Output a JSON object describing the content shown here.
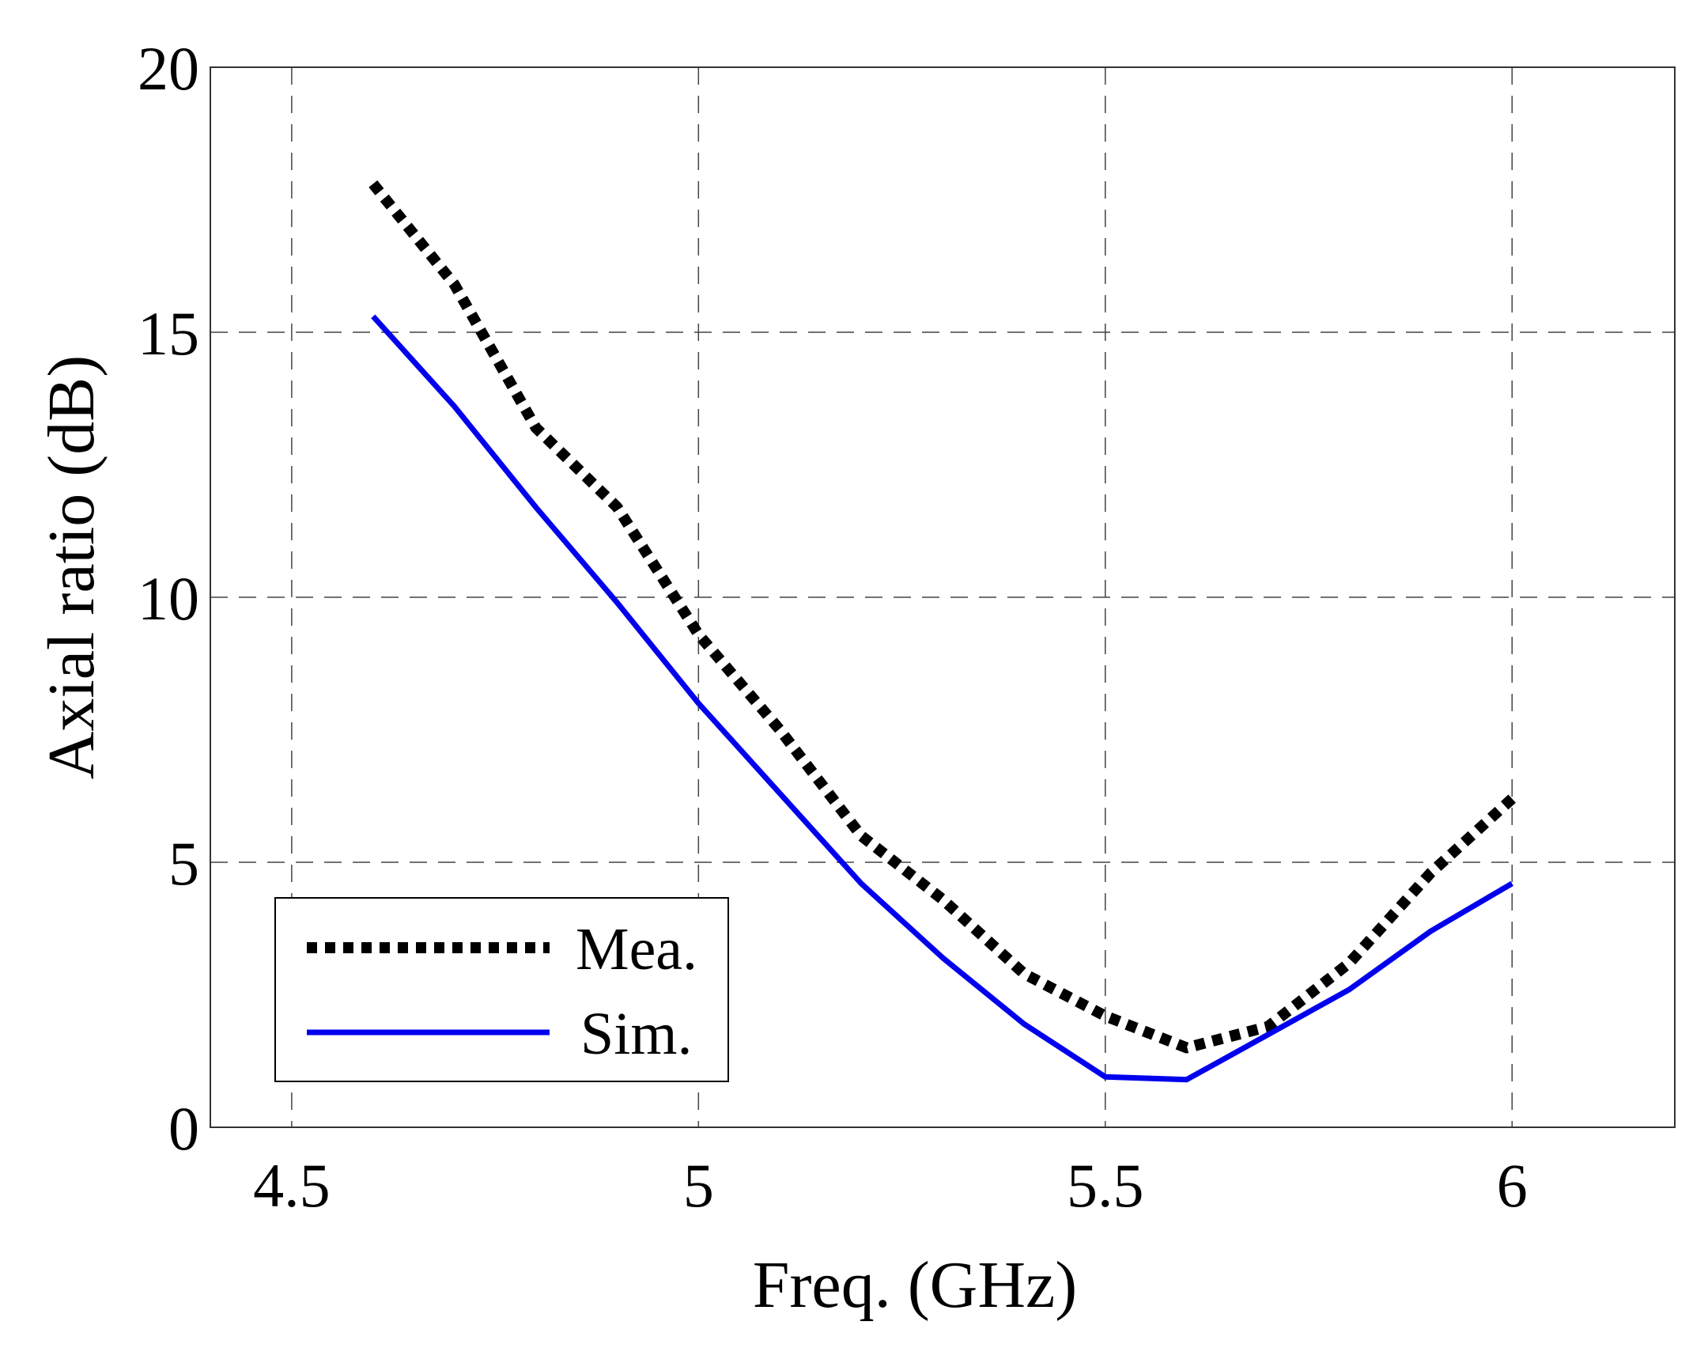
{
  "chart_data": {
    "type": "line",
    "title": "",
    "xlabel": "Freq. (GHz)",
    "ylabel": "Axial ratio (dB)",
    "xlim": [
      4.4,
      6.2
    ],
    "ylim": [
      0,
      20
    ],
    "xticks": [
      4.5,
      5,
      5.5,
      6
    ],
    "xtick_labels": [
      "4.5",
      "5",
      "5.5",
      "6"
    ],
    "yticks": [
      0,
      5,
      10,
      15,
      20
    ],
    "ytick_labels": [
      "0",
      "5",
      "10",
      "15",
      "20"
    ],
    "grid": true,
    "legend_position": "bottom-left",
    "series": [
      {
        "name": "Mea.",
        "style": "dotted",
        "color": "#000000",
        "x": [
          4.6,
          4.7,
          4.8,
          4.9,
          5.0,
          5.1,
          5.2,
          5.3,
          5.4,
          5.5,
          5.6,
          5.7,
          5.8,
          5.9,
          6.0
        ],
        "y": [
          17.8,
          15.9,
          13.2,
          11.7,
          9.3,
          7.5,
          5.5,
          4.3,
          2.9,
          2.1,
          1.5,
          1.9,
          3.1,
          4.8,
          6.2
        ]
      },
      {
        "name": "Sim.",
        "style": "solid",
        "color": "#0000ee",
        "x": [
          4.6,
          4.7,
          4.8,
          4.9,
          5.0,
          5.1,
          5.2,
          5.3,
          5.4,
          5.5,
          5.6,
          5.7,
          5.8,
          5.9,
          6.0
        ],
        "y": [
          15.3,
          13.6,
          11.7,
          9.9,
          8.0,
          6.3,
          4.6,
          3.2,
          1.95,
          0.95,
          0.9,
          1.75,
          2.6,
          3.7,
          4.6
        ]
      }
    ]
  }
}
